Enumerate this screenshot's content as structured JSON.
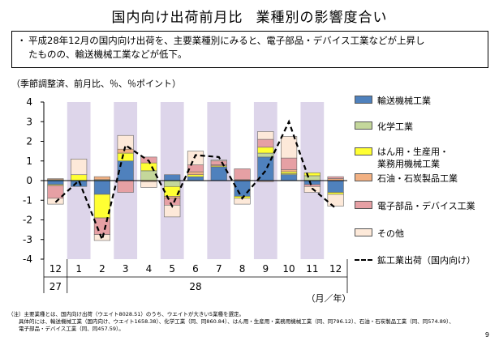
{
  "slide": {
    "title_a": "国内向け出荷前月比",
    "title_b": "業種別の影響度合い",
    "bullet": "平成28年12月の国内向け出荷を、主要業種別にみると、電子部品・デバイス工業などが上昇したものの、輸送機械工業などが低下。",
    "bullet_line1": "平成28年12月の国内向け出荷を、主要業種別にみると、電子部品・デバイス工業などが上昇し",
    "bullet_line2": "たものの、輸送機械工業などが低下。",
    "unit_note": "（季節調整済、前月比、％、％ポイント）",
    "note_line1": "（注）主要業種とは、国内向け出荷（ウエイト8028.51）のうち、ウエイトが大きい5業種を選定。",
    "note_line2": "　　具体的には、輸送機械工業（国内向け、ウエイト1658.38）、化学工業（同、同860.84）、はん用・生産用・業務用機械工業（同、同796.12）、石油・石炭製品工業（同、同574.89）、",
    "note_line3": "　　電子部品・デバイス工業（同、同457.59）。",
    "page_number": "9"
  },
  "chart_data": {
    "type": "bar",
    "stacked": true,
    "categories": [
      "12",
      "1",
      "2",
      "3",
      "4",
      "5",
      "6",
      "7",
      "8",
      "9",
      "10",
      "11",
      "12"
    ],
    "year_labels": [
      {
        "label": "27",
        "category_index": 0
      },
      {
        "label": "28",
        "category_index": 6
      }
    ],
    "axis_unit_label": "（月／年）",
    "ylim": [
      -4,
      4
    ],
    "yticks": [
      4,
      3,
      2,
      1,
      0,
      -1,
      -2,
      -3,
      -4
    ],
    "shaded_categories": [
      1,
      3,
      5,
      7,
      9,
      11
    ],
    "shade_color": "#DDD5EA",
    "series": [
      {
        "name": "輸送機械工業",
        "color": "#4F81BD",
        "values": [
          -0.2,
          -0.3,
          -0.7,
          1.0,
          0.0,
          0.3,
          0.2,
          0.7,
          -0.8,
          1.2,
          0.3,
          -0.2,
          -0.6
        ]
      },
      {
        "name": "化学工業",
        "color": "#C4D79B",
        "values": [
          0.05,
          0.0,
          0.05,
          0.0,
          0.5,
          -0.3,
          0.0,
          0.0,
          0.0,
          0.2,
          0.05,
          0.25,
          0.0
        ]
      },
      {
        "name": "はん用・生産用・業務用機械工業",
        "color": "#FFFF33",
        "values": [
          -0.05,
          0.3,
          -1.2,
          0.4,
          0.4,
          -0.5,
          0.1,
          0.05,
          -0.1,
          0.3,
          0.1,
          0.15,
          -0.1
        ]
      },
      {
        "name": "石油・石炭製品工業",
        "color": "#F2B183",
        "values": [
          0.05,
          0.0,
          0.15,
          0.2,
          -0.05,
          -0.1,
          0.15,
          0.05,
          0.05,
          -0.05,
          0.1,
          0.0,
          0.1
        ]
      },
      {
        "name": "電子部品・デバイス工業",
        "color": "#E6A0A4",
        "values": [
          -0.65,
          0.0,
          -0.85,
          -0.6,
          0.3,
          -0.35,
          0.35,
          0.2,
          0.55,
          0.4,
          0.6,
          -0.1,
          0.1
        ]
      },
      {
        "name": "その他",
        "color": "#FDE9D9",
        "values": [
          -0.3,
          0.8,
          -0.3,
          0.7,
          -0.3,
          -0.6,
          0.7,
          0.05,
          -0.3,
          0.4,
          1.1,
          -0.3,
          -0.6
        ]
      }
    ],
    "line_series": {
      "name": "鉱工業出荷（国内向け）",
      "style": "dashed",
      "color": "#000000",
      "values": [
        -1.1,
        0.0,
        -3.0,
        1.8,
        1.0,
        -1.3,
        1.3,
        1.2,
        -0.9,
        0.5,
        3.0,
        -0.4,
        -1.4
      ]
    },
    "legend_position": "right"
  }
}
